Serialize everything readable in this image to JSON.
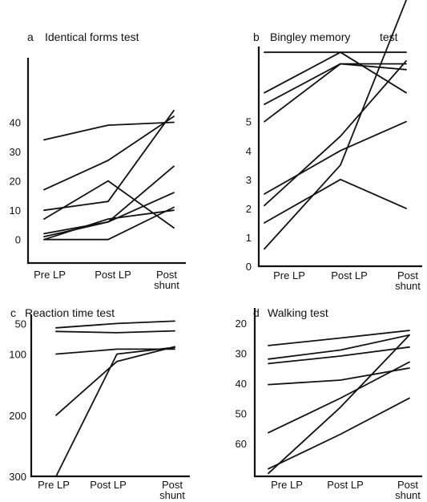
{
  "chart_data": [
    {
      "type": "line",
      "panel": "a",
      "title": "Identical forms test",
      "categories": [
        "Pre LP",
        "Post LP",
        "Post shunt"
      ],
      "yticks": [
        0,
        10,
        20,
        30,
        40
      ],
      "ylim": [
        -8,
        62
      ],
      "series": [
        {
          "values": [
            34,
            39,
            40
          ]
        },
        {
          "values": [
            17,
            27,
            42
          ]
        },
        {
          "values": [
            10,
            13,
            44
          ]
        },
        {
          "values": [
            7,
            20,
            4
          ]
        },
        {
          "values": [
            2,
            6,
            25
          ]
        },
        {
          "values": [
            1,
            6,
            16
          ]
        },
        {
          "values": [
            0,
            7,
            10
          ]
        },
        {
          "values": [
            0,
            0,
            11
          ]
        }
      ]
    },
    {
      "type": "line",
      "panel": "b",
      "title": "Bingley memory test",
      "categories": [
        "Pre LP",
        "Post LP",
        "Post shunt"
      ],
      "yticks": [
        0,
        1,
        2,
        3,
        4,
        5
      ],
      "ylim": [
        0,
        7.6
      ],
      "series": [
        {
          "values": [
            7.4,
            7.4,
            7.4
          ]
        },
        {
          "values": [
            6.0,
            7.4,
            6.0
          ]
        },
        {
          "values": [
            5.6,
            7.0,
            6.8
          ]
        },
        {
          "values": [
            5.0,
            7.0,
            7.0
          ]
        },
        {
          "values": [
            2.5,
            4.0,
            5.0
          ]
        },
        {
          "values": [
            2.1,
            4.5,
            7.1
          ]
        },
        {
          "values": [
            1.5,
            3.0,
            2.0
          ]
        },
        {
          "values": [
            0.6,
            3.5,
            9.2
          ]
        }
      ]
    },
    {
      "type": "line",
      "panel": "c",
      "title": "Reaction time test",
      "categories": [
        "Pre LP",
        "Post LP",
        "Post shunt"
      ],
      "yticks": [
        50,
        100,
        200,
        300
      ],
      "ylim": [
        35,
        300
      ],
      "reversed": true,
      "series": [
        {
          "values": [
            57,
            50,
            46
          ]
        },
        {
          "values": [
            63,
            65,
            62
          ]
        },
        {
          "values": [
            100,
            92,
            92
          ]
        },
        {
          "values": [
            200,
            112,
            88
          ]
        },
        {
          "values": [
            300,
            100,
            89
          ]
        }
      ]
    },
    {
      "type": "line",
      "panel": "d",
      "title": "Walking test",
      "categories": [
        "Pre LP",
        "Post LP",
        "Post shunt"
      ],
      "yticks": [
        20,
        30,
        40,
        50,
        60
      ],
      "ylim": [
        15,
        71
      ],
      "reversed": true,
      "series": [
        {
          "values": [
            27.5,
            25,
            22.5
          ]
        },
        {
          "values": [
            32,
            29,
            24
          ]
        },
        {
          "values": [
            33.5,
            31,
            28
          ]
        },
        {
          "values": [
            40.5,
            39,
            35
          ]
        },
        {
          "values": [
            56.5,
            45,
            33
          ]
        },
        {
          "values": [
            68.5,
            57,
            45
          ]
        },
        {
          "values": [
            70,
            48,
            24
          ]
        }
      ]
    }
  ],
  "panels": [
    {
      "letter": "a",
      "title": "Identical forms test"
    },
    {
      "letter": "b",
      "title": "Bingley memory",
      "title_tail": "test"
    },
    {
      "letter": "c",
      "title": "Reaction time test"
    },
    {
      "letter": "d",
      "title": "Walking test"
    }
  ],
  "x_labels": {
    "pre": "Pre LP",
    "post": "Post LP",
    "shunt_line1": "Post",
    "shunt_line2": "shunt"
  }
}
